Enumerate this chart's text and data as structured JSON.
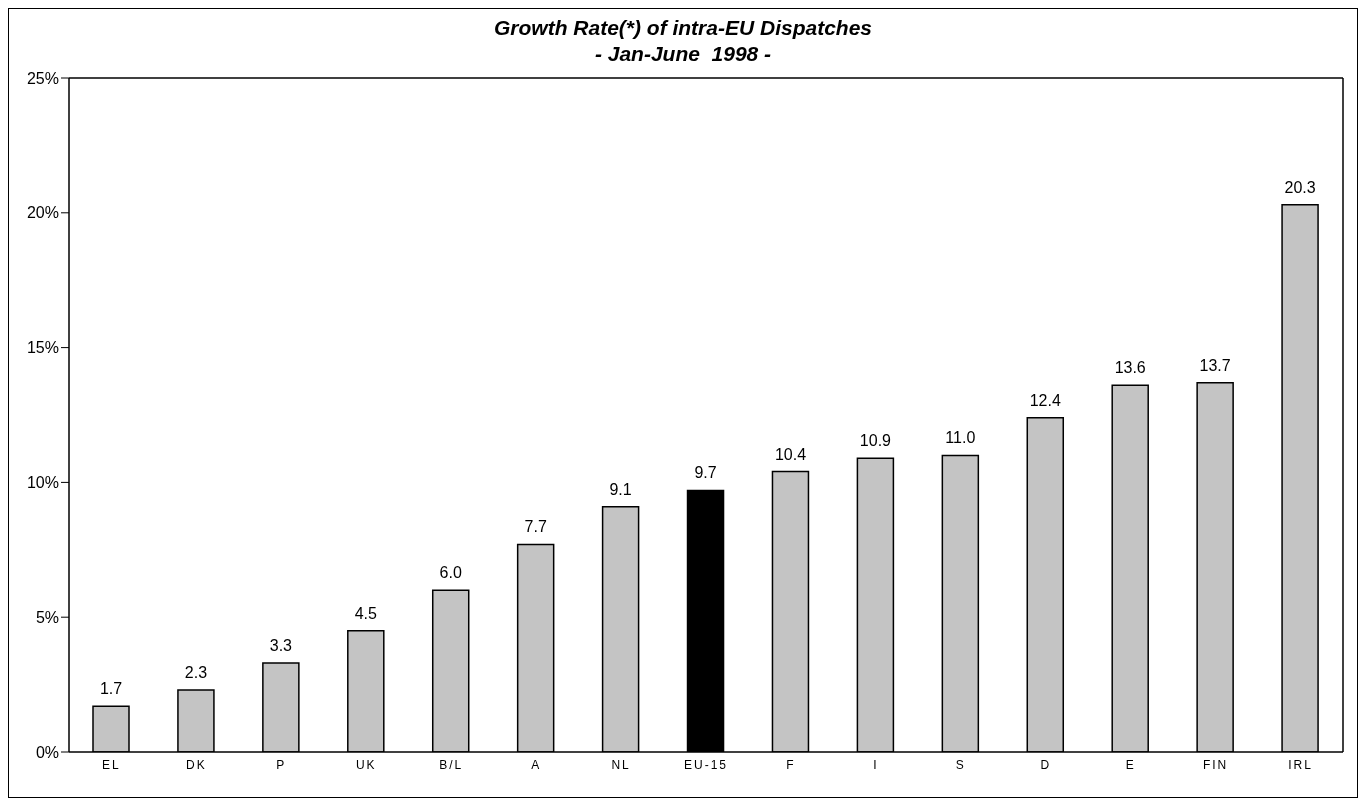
{
  "chart_data": {
    "type": "bar",
    "title": "Growth Rate(*) of intra-EU Dispatches",
    "subtitle": "- Jan-June  1998 -",
    "categories": [
      "EL",
      "DK",
      "P",
      "UK",
      "B/L",
      "A",
      "NL",
      "EU-15",
      "F",
      "I",
      "S",
      "D",
      "E",
      "FIN",
      "IRL"
    ],
    "values": [
      1.7,
      2.3,
      3.3,
      4.5,
      6.0,
      7.7,
      9.1,
      9.7,
      10.4,
      10.9,
      11.0,
      12.4,
      13.6,
      13.7,
      20.3
    ],
    "value_labels": [
      "1.7",
      "2.3",
      "3.3",
      "4.5",
      "6.0",
      "7.7",
      "9.1",
      "9.7",
      "10.4",
      "10.9",
      "11.0",
      "12.4",
      "13.6",
      "13.7",
      "20.3"
    ],
    "colors": [
      "#c4c4c4",
      "#c4c4c4",
      "#c4c4c4",
      "#c4c4c4",
      "#c4c4c4",
      "#c4c4c4",
      "#c4c4c4",
      "#000000",
      "#c4c4c4",
      "#c4c4c4",
      "#c4c4c4",
      "#c4c4c4",
      "#c4c4c4",
      "#c4c4c4",
      "#c4c4c4"
    ],
    "ylim": [
      0,
      25
    ],
    "yticks": [
      {
        "value": 0,
        "label": "0%"
      },
      {
        "value": 5,
        "label": "5%"
      },
      {
        "value": 10,
        "label": "10%"
      },
      {
        "value": 15,
        "label": "15%"
      },
      {
        "value": 20,
        "label": "20%"
      },
      {
        "value": 25,
        "label": "25%"
      }
    ],
    "grid": false,
    "legend": false
  }
}
